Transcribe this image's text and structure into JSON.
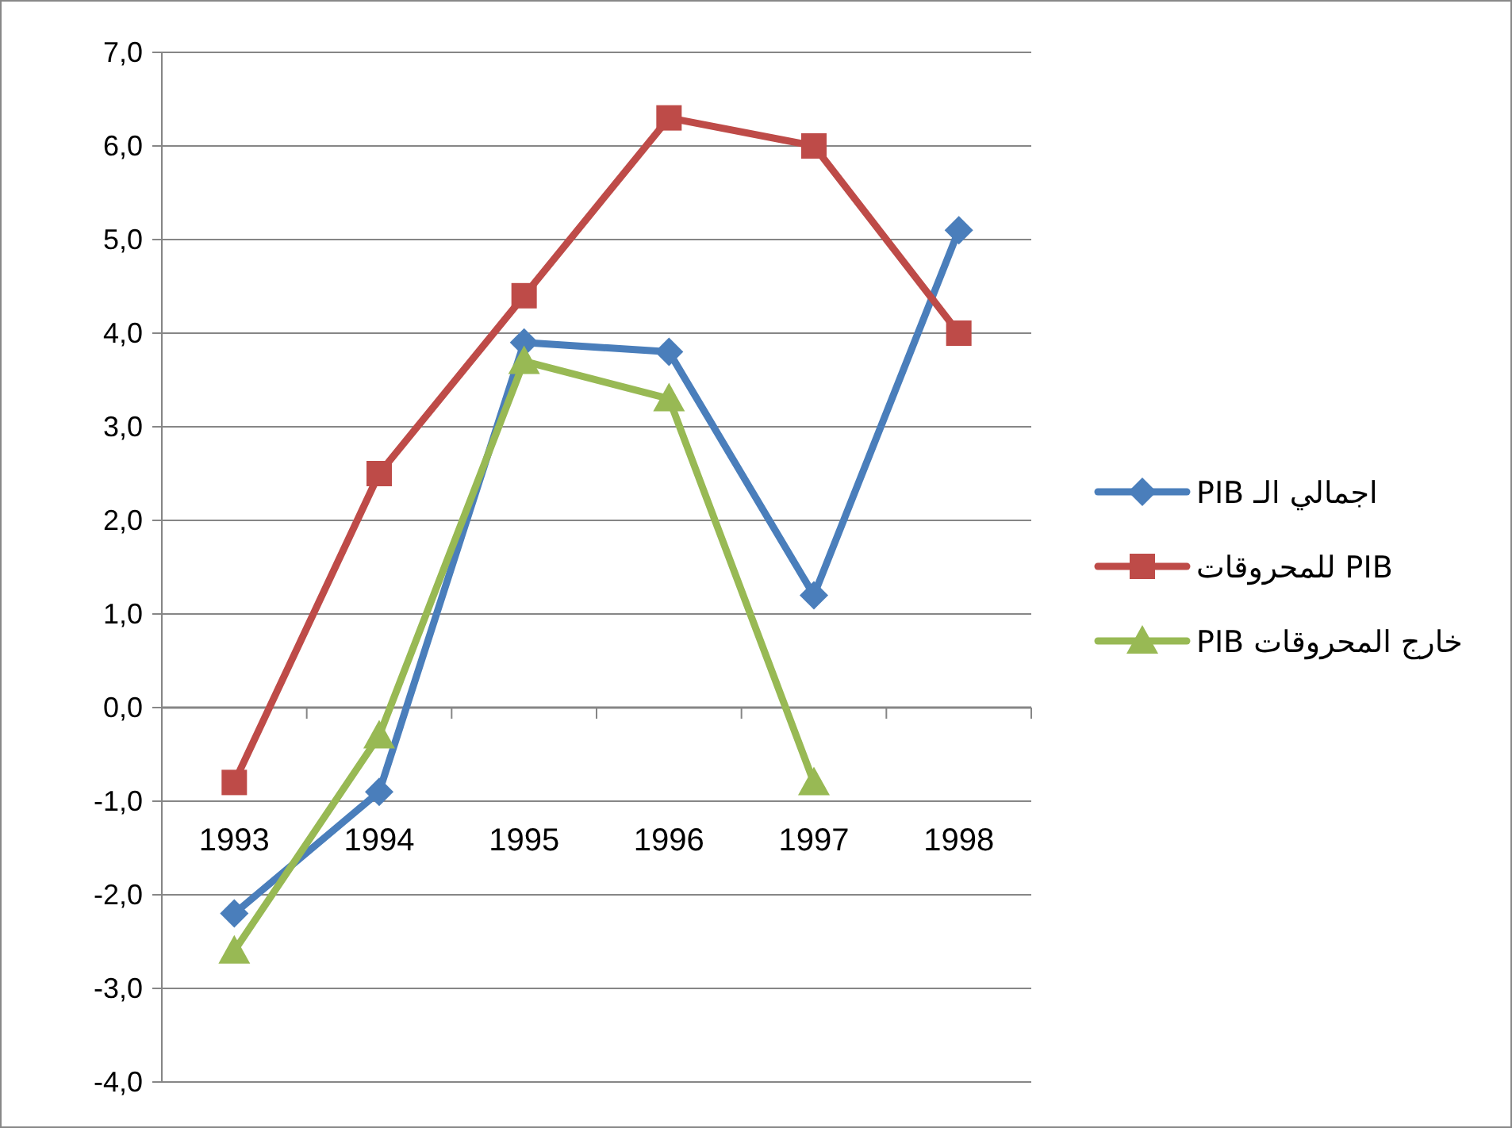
{
  "chart_data": {
    "type": "line",
    "categories": [
      "1993",
      "1994",
      "1995",
      "1996",
      "1997",
      "1998"
    ],
    "series": [
      {
        "name": "اجمالي الـ PIB",
        "color": "#4a7ebb",
        "marker": "diamond",
        "values": [
          -2.2,
          -0.9,
          3.9,
          3.8,
          1.2,
          5.1
        ]
      },
      {
        "name": "PIB للمحروقات",
        "color": "#be4b48",
        "marker": "square",
        "values": [
          -0.8,
          2.5,
          4.4,
          6.3,
          6.0,
          4.0
        ]
      },
      {
        "name": "خارج المحروقات PIB",
        "color": "#98b954",
        "marker": "triangle",
        "values": [
          -2.6,
          -0.3,
          3.7,
          3.3,
          -0.8,
          null
        ]
      }
    ],
    "ylim": [
      -4,
      7
    ],
    "yticks": [
      {
        "value": -4,
        "label": "-4,0"
      },
      {
        "value": -3,
        "label": "-3,0"
      },
      {
        "value": -2,
        "label": "-2,0"
      },
      {
        "value": -1,
        "label": "-1,0"
      },
      {
        "value": 0,
        "label": "0,0"
      },
      {
        "value": 1,
        "label": "1,0"
      },
      {
        "value": 2,
        "label": "2,0"
      },
      {
        "value": 3,
        "label": "3,0"
      },
      {
        "value": 4,
        "label": "4,0"
      },
      {
        "value": 5,
        "label": "5,0"
      },
      {
        "value": 6,
        "label": "6,0"
      },
      {
        "value": 7,
        "label": "7,0"
      }
    ],
    "grid": "y",
    "legend": "right",
    "line_style": "solid"
  }
}
